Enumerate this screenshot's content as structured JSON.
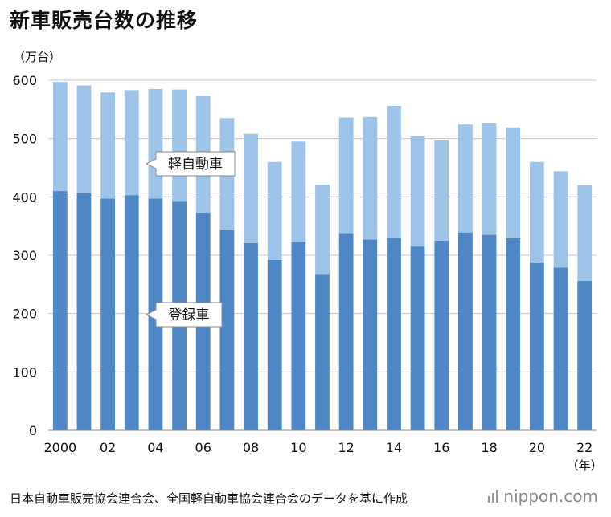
{
  "title": "新車販売台数の推移",
  "chart_data": {
    "type": "bar",
    "stacked": true,
    "title": "新車販売台数の推移",
    "ylabel": "（万台）",
    "xlabel": "（年）",
    "ylim": [
      0,
      600
    ],
    "yticks": [
      0,
      100,
      200,
      300,
      400,
      500,
      600
    ],
    "grid": true,
    "categories": [
      "2000",
      "2001",
      "2002",
      "2003",
      "2004",
      "2005",
      "2006",
      "2007",
      "2008",
      "2009",
      "2010",
      "2011",
      "2012",
      "2013",
      "2014",
      "2015",
      "2016",
      "2017",
      "2018",
      "2019",
      "2020",
      "2021",
      "2022"
    ],
    "x_tick_labels": {
      "0": "2000",
      "2": "02",
      "4": "04",
      "6": "06",
      "8": "08",
      "10": "10",
      "12": "12",
      "14": "14",
      "16": "16",
      "18": "18",
      "20": "20",
      "22": "22"
    },
    "series": [
      {
        "name": "登録車",
        "color": "#4f86c6",
        "values": [
          410,
          406,
          397,
          403,
          397,
          393,
          373,
          343,
          321,
          292,
          323,
          268,
          338,
          327,
          330,
          315,
          325,
          339,
          335,
          329,
          288,
          279,
          256
        ]
      },
      {
        "name": "軽自動車",
        "color": "#9ec3e8",
        "values": [
          187,
          185,
          182,
          180,
          188,
          191,
          200,
          192,
          187,
          168,
          172,
          153,
          198,
          210,
          226,
          189,
          172,
          185,
          192,
          190,
          172,
          165,
          164
        ]
      }
    ],
    "annotations": [
      "軽自動車",
      "登録車"
    ]
  },
  "footer": {
    "source": "日本自動車販売協会連合会、全国軽自動車協会連合会のデータを基に作成",
    "logo": "nippon.com"
  }
}
